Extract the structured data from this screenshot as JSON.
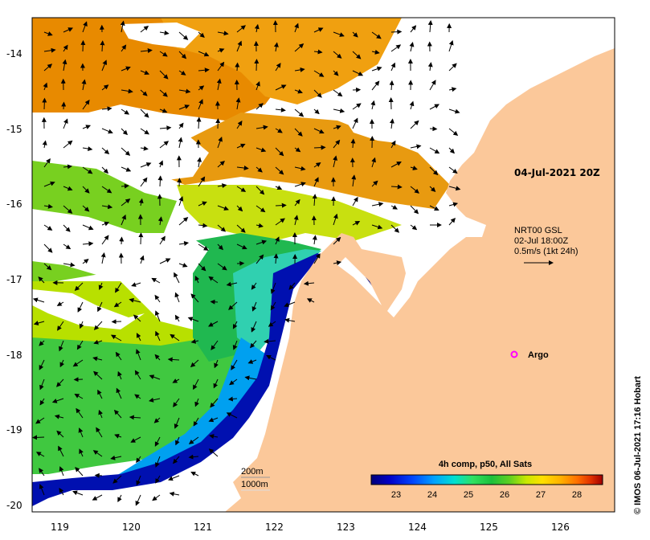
{
  "map": {
    "timestamp": "04-Jul-2021 20Z",
    "current_source": {
      "line1": "NRT00 GSL",
      "line2": "02-Jul 18:00Z",
      "line3": "0.5m/s (1kt 24h)"
    },
    "argo_label": "Argo",
    "isobaths": [
      "200m",
      "1000m"
    ],
    "colorbar_title": "4h comp, p50, All Sats",
    "colorbar_ticks": [
      "23",
      "24",
      "25",
      "26",
      "27",
      "28"
    ],
    "colorbar_colors": [
      "#00007a",
      "#0000c8",
      "#0046ff",
      "#00a0ff",
      "#00e0d0",
      "#30e060",
      "#1cc03c",
      "#60d020",
      "#c8e800",
      "#ffe000",
      "#ffb000",
      "#ff7000",
      "#e03000",
      "#a00000"
    ],
    "credit": "© IMOS 06-Jul-2021 17:16 Hobart",
    "lat_labels": [
      "-14",
      "-15",
      "-16",
      "-17",
      "-18",
      "-19",
      "-20"
    ],
    "lon_labels": [
      "119",
      "120",
      "121",
      "122",
      "123",
      "124",
      "125",
      "126"
    ],
    "colors": {
      "land": "#fbc89a",
      "cloud": "#ffffff",
      "argo": "#ff00ff"
    }
  }
}
